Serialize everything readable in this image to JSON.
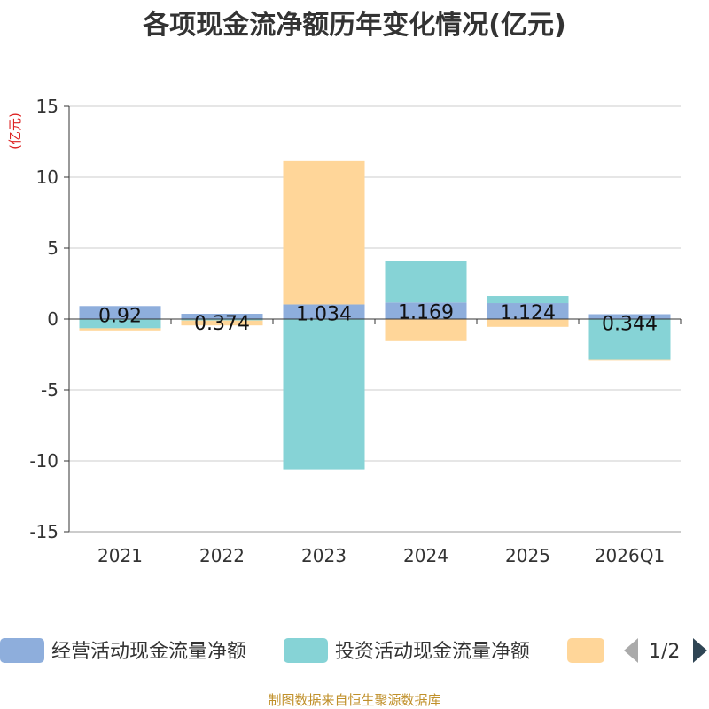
{
  "title": "各项现金流净额历年变化情况(亿元)",
  "unit_label": "(亿元)",
  "source": "制图数据来自恒生聚源数据库",
  "legend_page": "1/2",
  "colors": {
    "operating": "#8eaedc",
    "investing": "#86d3d6",
    "financing": "#ffd699"
  },
  "chart_data": {
    "type": "bar",
    "stacked": true,
    "title": "各项现金流净额历年变化情况(亿元)",
    "ylabel": "(亿元)",
    "ylim": [
      -15,
      15
    ],
    "yticks": [
      15,
      10,
      5,
      0,
      -5,
      -10,
      -15
    ],
    "grid": true,
    "legend_position": "bottom",
    "categories": [
      "2021",
      "2022",
      "2023",
      "2024",
      "2025",
      "2026Q1"
    ],
    "series": [
      {
        "name": "经营活动现金流量净额",
        "color": "#8eaedc",
        "values": [
          0.92,
          0.374,
          1.034,
          1.169,
          1.124,
          0.344
        ],
        "labels": [
          "0.92",
          "0.374",
          "1.034",
          "1.169",
          "1.124",
          "0.344"
        ]
      },
      {
        "name": "投资活动现金流量净额",
        "color": "#86d3d6",
        "values": [
          -0.65,
          -0.1,
          -10.6,
          2.9,
          0.5,
          -2.85
        ]
      },
      {
        "name": "",
        "color": "#ffd699",
        "values": [
          -0.15,
          -0.35,
          10.1,
          -1.55,
          -0.55,
          -0.05
        ]
      }
    ]
  }
}
